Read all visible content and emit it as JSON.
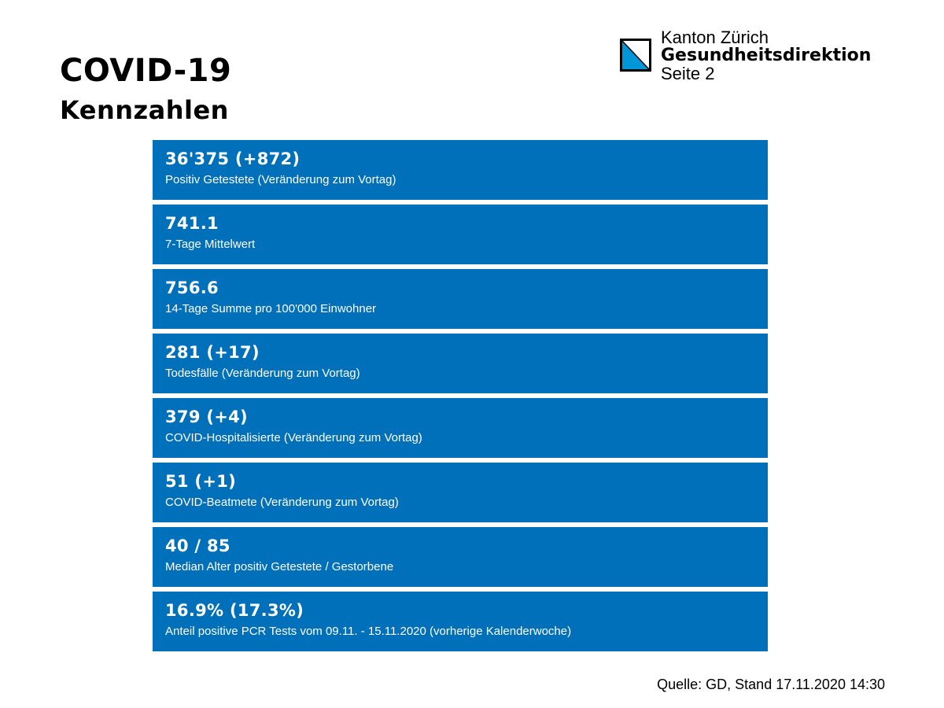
{
  "header": {
    "title": "COVID-19",
    "subtitle": "Kennzahlen"
  },
  "logo": {
    "icon": "zurich-coat-of-arms-icon",
    "line1": "Kanton Zürich",
    "line2": "Gesundheitsdirektion",
    "line3": "Seite 2",
    "colors": {
      "blue": "#0096D7",
      "frame": "#000000"
    }
  },
  "metrics": [
    {
      "value": "36'375 (+872)",
      "label": "Positiv Getestete (Veränderung zum Vortag)"
    },
    {
      "value": "741.1",
      "label": "7-Tage Mittelwert"
    },
    {
      "value": "756.6",
      "label": "14-Tage Summe pro 100'000 Einwohner"
    },
    {
      "value": "281 (+17)",
      "label": "Todesfälle (Veränderung zum Vortag)"
    },
    {
      "value": "379 (+4)",
      "label": "COVID-Hospitalisierte (Veränderung zum Vortag)"
    },
    {
      "value": "51 (+1)",
      "label": "COVID-Beatmete (Veränderung zum Vortag)"
    },
    {
      "value": "40 / 85",
      "label": "Median Alter positiv Getestete / Gestorbene"
    },
    {
      "value": "16.9% (17.3%)",
      "label": "Anteil positive PCR Tests vom 09.11.  -  15.11.2020 (vorherige Kalenderwoche)"
    }
  ],
  "footer": {
    "source": "Quelle: GD, Stand 17.11.2020 14:30"
  },
  "colors": {
    "card_background": "#0070BA",
    "card_text": "#FFFFFF",
    "page_background": "#FFFFFF",
    "text": "#000000"
  }
}
